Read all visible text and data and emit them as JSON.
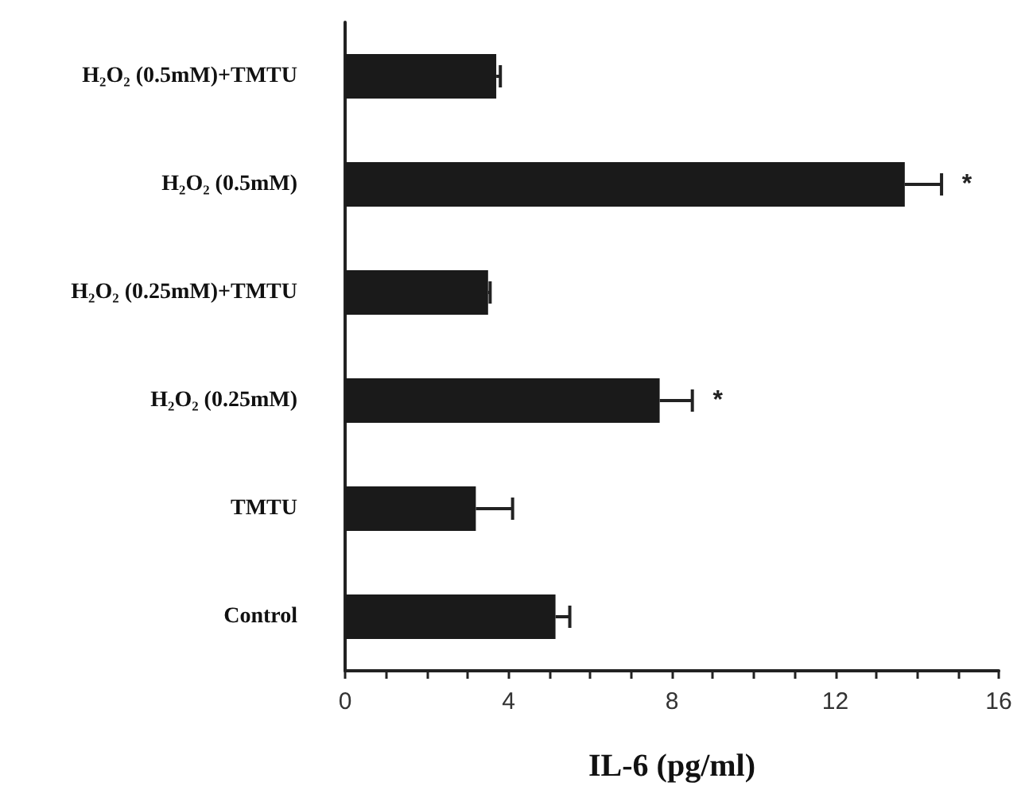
{
  "chart_data": {
    "type": "bar",
    "orientation": "horizontal",
    "xlabel": "IL-6 (pg/ml)",
    "categories": [
      "H₂O₂ (0.5mM)+TMTU",
      "H₂O₂ (0.5mM)",
      "H₂O₂ (0.25mM)+TMTU",
      "H₂O₂ (0.25mM)",
      "TMTU",
      "Control"
    ],
    "values": [
      3.7,
      13.7,
      3.5,
      7.7,
      3.2,
      5.15
    ],
    "errors": [
      [
        3.7,
        3.8
      ],
      [
        13.7,
        14.6
      ],
      [
        3.5,
        3.55
      ],
      [
        7.7,
        8.5
      ],
      [
        3.2,
        4.1
      ],
      [
        5.15,
        5.5
      ]
    ],
    "color": "#1a1a1a",
    "xlim": [
      0,
      16
    ],
    "xticks": [
      0,
      {
        "value": 1,
        "label": null
      },
      {
        "value": 2,
        "label": null
      },
      {
        "value": 3,
        "label": null
      },
      4,
      {
        "value": 5,
        "label": null
      },
      {
        "value": 6,
        "label": null
      },
      {
        "value": 7,
        "label": null
      },
      8,
      {
        "value": 9,
        "label": null
      },
      {
        "value": 10,
        "label": null
      },
      {
        "value": 11,
        "label": null
      },
      12,
      {
        "value": 13,
        "label": null
      },
      {
        "value": 14,
        "label": null
      },
      {
        "value": 15,
        "label": null
      },
      16
    ],
    "annotations": [
      {
        "text": "*",
        "x": 14.6,
        "y": "H₂O₂ (0.5mM)"
      },
      {
        "text": "*",
        "x": 8.5,
        "y": "H₂O₂ (0.25mM)"
      }
    ]
  }
}
